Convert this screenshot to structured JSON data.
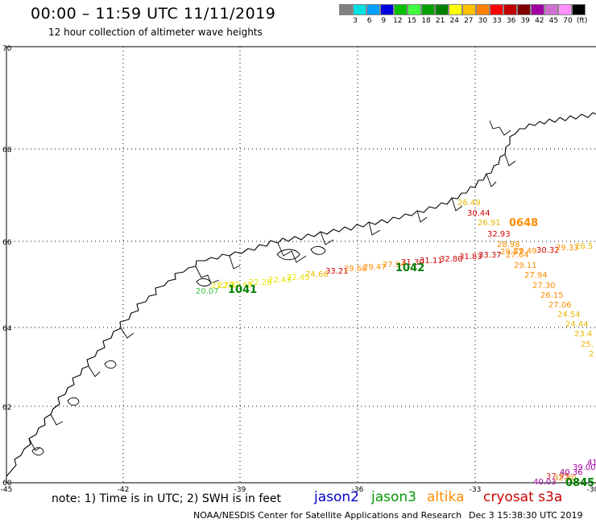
{
  "header": {
    "title": "00:00 – 11:59 UTC 11/11/2019",
    "subtitle": "12 hour collection of altimeter wave heights"
  },
  "color_scale": {
    "unit_label": "(ft)",
    "bins": [
      {
        "label": "",
        "color": "#808080"
      },
      {
        "label": "3",
        "color": "#00e0e0"
      },
      {
        "label": "6",
        "color": "#00a0ff"
      },
      {
        "label": "9",
        "color": "#0000e0"
      },
      {
        "label": "12",
        "color": "#00c000"
      },
      {
        "label": "15",
        "color": "#40ff40"
      },
      {
        "label": "18",
        "color": "#00a000"
      },
      {
        "label": "21",
        "color": "#008000"
      },
      {
        "label": "24",
        "color": "#ffff00"
      },
      {
        "label": "27",
        "color": "#ffc000"
      },
      {
        "label": "30",
        "color": "#ff8000"
      },
      {
        "label": "33",
        "color": "#ff0000"
      },
      {
        "label": "36",
        "color": "#c00000"
      },
      {
        "label": "39",
        "color": "#800000"
      },
      {
        "label": "42",
        "color": "#a000a0"
      },
      {
        "label": "45",
        "color": "#d070d0"
      },
      {
        "label": "70",
        "color": "#ff90ff"
      },
      {
        "label": "",
        "color": "#000000"
      }
    ]
  },
  "axes": {
    "lon_labels": [
      "-45",
      "-42",
      "-39",
      "-36",
      "-33",
      "-30"
    ],
    "lat_labels": [
      "70",
      "68",
      "66",
      "64",
      "62",
      "60"
    ]
  },
  "wave_labels": [
    {
      "text": "26.49",
      "color": "#e8b800"
    },
    {
      "text": "30.44",
      "color": "#d40000"
    },
    {
      "text": "26.91",
      "color": "#e8b800"
    },
    {
      "text": "32.93",
      "color": "#d40000"
    },
    {
      "text": "28.98",
      "color": "#ff8c00"
    },
    {
      "text": "29.57",
      "color": "#ff8c00"
    },
    {
      "text": "29.49",
      "color": "#ff8c00"
    },
    {
      "text": "27.64",
      "color": "#ff8c00"
    },
    {
      "text": "30.32",
      "color": "#d40000"
    },
    {
      "text": "29.33",
      "color": "#ff8c00"
    },
    {
      "text": "26.5",
      "color": "#e8b800"
    },
    {
      "text": "29.11",
      "color": "#ff8c00"
    },
    {
      "text": "27.94",
      "color": "#ff8c00"
    },
    {
      "text": "27.30",
      "color": "#ff8c00"
    },
    {
      "text": "26.15",
      "color": "#ff8c00"
    },
    {
      "text": "27.06",
      "color": "#ff8c00"
    },
    {
      "text": "24.54",
      "color": "#e8b800"
    },
    {
      "text": "24.44",
      "color": "#e8b800"
    },
    {
      "text": "23.4",
      "color": "#e8b800"
    },
    {
      "text": "25.",
      "color": "#e8b800"
    },
    {
      "text": "2",
      "color": "#e8b800"
    },
    {
      "text": "33.21",
      "color": "#d40000"
    },
    {
      "text": "29.68",
      "color": "#ff8c00"
    },
    {
      "text": "29.47",
      "color": "#ff8c00"
    },
    {
      "text": "27.94",
      "color": "#ff8c00"
    },
    {
      "text": "31.30",
      "color": "#d40000"
    },
    {
      "text": "31.11",
      "color": "#d40000"
    },
    {
      "text": "32.80",
      "color": "#d40000"
    },
    {
      "text": "31.83",
      "color": "#d40000"
    },
    {
      "text": "33.37",
      "color": "#c00000"
    },
    {
      "text": "24.66",
      "color": "#e8b800"
    },
    {
      "text": "22.45",
      "color": "#e8e000"
    },
    {
      "text": "22.43",
      "color": "#e8e000"
    },
    {
      "text": "22.28",
      "color": "#e8e000"
    },
    {
      "text": "22.45",
      "color": "#e8e000"
    },
    {
      "text": "22.4",
      "color": "#e8e000"
    },
    {
      "text": "21.70",
      "color": "#e8e000"
    },
    {
      "text": "20.07",
      "color": "#40c040"
    },
    {
      "text": "41",
      "color": "#a000a0"
    },
    {
      "text": "39.00",
      "color": "#a000a0"
    },
    {
      "text": "40.36",
      "color": "#a000a0"
    },
    {
      "text": "37.95",
      "color": "#d03030"
    },
    {
      "text": "40.03",
      "color": "#a000a0"
    },
    {
      "text": "32.80",
      "color": "#ff8c00"
    }
  ],
  "pass_times": [
    {
      "text": "0648",
      "color": "#ff8c00"
    },
    {
      "text": "1042",
      "color": "#008000"
    },
    {
      "text": "1041",
      "color": "#008000"
    },
    {
      "text": "0845",
      "color": "#008000"
    }
  ],
  "footer": {
    "note": "note: 1) Time is in UTC; 2) SWH is in feet",
    "satellites": [
      {
        "name": "jason2",
        "color": "#0000cc"
      },
      {
        "name": "jason3",
        "color": "#009900"
      },
      {
        "name": "altika",
        "color": "#ff8c00"
      },
      {
        "name": "cryosat s3a",
        "color": "#cc0000"
      }
    ],
    "credit": "NOAA/NESDIS Center for Satellite Applications and Research",
    "generated": "Dec  3 15:38:30 UTC 2019"
  }
}
